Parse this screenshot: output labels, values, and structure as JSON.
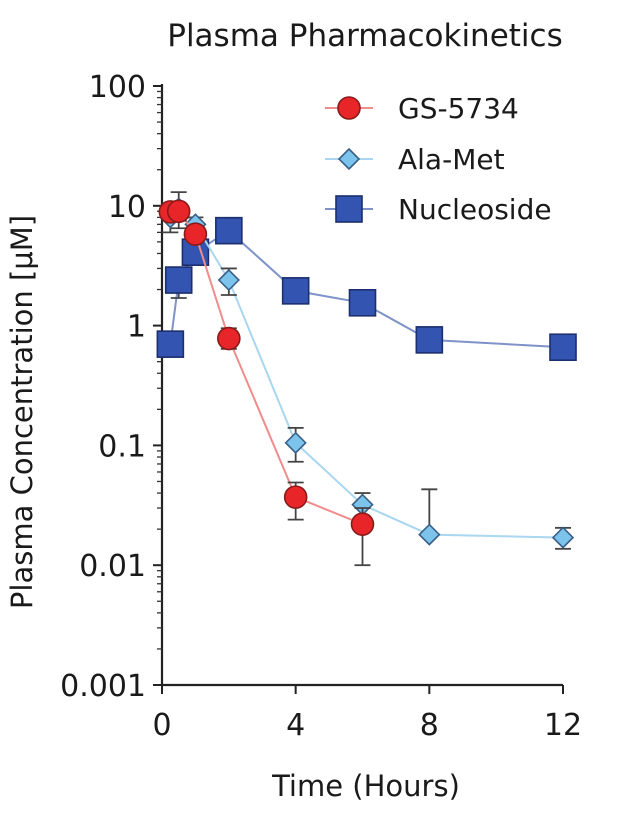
{
  "chart_data": {
    "type": "line",
    "title": "Plasma Pharmacokinetics",
    "xlabel": "Time (Hours)",
    "ylabel": "Plasma Concentration [μM]",
    "xlim": [
      0,
      12
    ],
    "ylim": [
      0.001,
      100
    ],
    "yscale": "log",
    "grid": false,
    "legend_position": "top-right",
    "x_ticks": [
      0,
      4,
      8,
      12
    ],
    "x_tick_labels": [
      "0",
      "4",
      "8",
      "12"
    ],
    "y_ticks": [
      0.001,
      0.01,
      0.1,
      1,
      10,
      100
    ],
    "y_tick_labels": [
      "0.001",
      "0.01",
      "0.1",
      "1",
      "10",
      "100"
    ],
    "series": [
      {
        "name": "GS-5734",
        "marker": "circle",
        "color": "#e8262a",
        "edge_color": "#8a1a1a",
        "line_color": "#f08c8c",
        "x": [
          0.25,
          0.5,
          1,
          2,
          4,
          6
        ],
        "y": [
          8.9,
          9.0,
          5.8,
          0.78,
          0.037,
          0.022
        ],
        "err_upper": [
          10.5,
          10.5,
          6.5,
          0.95,
          0.049,
          0.03
        ],
        "err_lower": [
          7.5,
          7.5,
          5.0,
          0.64,
          0.024,
          0.01
        ]
      },
      {
        "name": "Ala-Met",
        "marker": "diamond",
        "color": "#7cc4ec",
        "edge_color": "#3a5f86",
        "line_color": "#a9d6f0",
        "x": [
          0.25,
          0.5,
          1,
          2,
          4,
          6,
          8,
          12
        ],
        "y": [
          8.0,
          9.5,
          7.0,
          2.4,
          0.105,
          0.032,
          0.018,
          0.017
        ],
        "err_upper": [
          10.0,
          13.0,
          8.0,
          3.0,
          0.14,
          0.04,
          0.043,
          0.0205
        ],
        "err_lower": [
          6.0,
          6.5,
          6.0,
          1.8,
          0.073,
          0.025,
          0.018,
          0.0137
        ]
      },
      {
        "name": "Nucleoside",
        "marker": "square",
        "color": "#3354b0",
        "edge_color": "#1c2f6e",
        "line_color": "#7f93c8",
        "x": [
          0.25,
          0.5,
          1,
          2,
          4,
          6,
          8,
          12
        ],
        "y": [
          0.7,
          2.4,
          4.1,
          6.2,
          1.95,
          1.55,
          0.76,
          0.66
        ],
        "err_upper": [
          0.8,
          3.0,
          4.6,
          6.8,
          2.2,
          1.7,
          0.85,
          0.72
        ],
        "err_lower": [
          0.6,
          1.7,
          3.6,
          5.6,
          1.7,
          1.4,
          0.68,
          0.6
        ]
      }
    ]
  }
}
